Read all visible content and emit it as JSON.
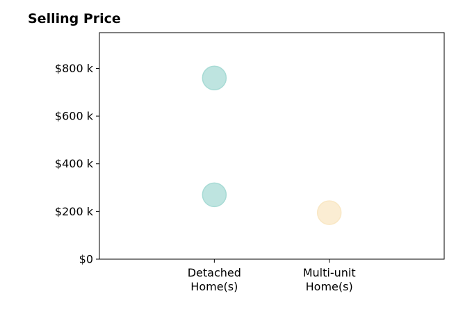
{
  "chart_data": {
    "type": "scatter",
    "title": "Selling Price",
    "xlabel": "",
    "ylabel": "",
    "categories": [
      [
        "Detached",
        "Home(s)"
      ],
      [
        "Multi-unit",
        "Home(s)"
      ]
    ],
    "y_ticks": [
      {
        "value": 0,
        "label": "$0"
      },
      {
        "value": 200000,
        "label": "$200 k"
      },
      {
        "value": 400000,
        "label": "$400 k"
      },
      {
        "value": 600000,
        "label": "$600 k"
      },
      {
        "value": 800000,
        "label": "$800 k"
      }
    ],
    "ylim": [
      0,
      950000
    ],
    "xlim": [
      -1,
      2
    ],
    "grid": false,
    "points": [
      {
        "category_index": 0,
        "y": 760000,
        "color": "#a8dbd5"
      },
      {
        "category_index": 0,
        "y": 270000,
        "color": "#a8dbd5"
      },
      {
        "category_index": 1,
        "y": 195000,
        "color": "#f9e7c4"
      }
    ],
    "colors": {
      "detached": "#a8dbd5",
      "multi_unit": "#f9e7c4"
    }
  }
}
